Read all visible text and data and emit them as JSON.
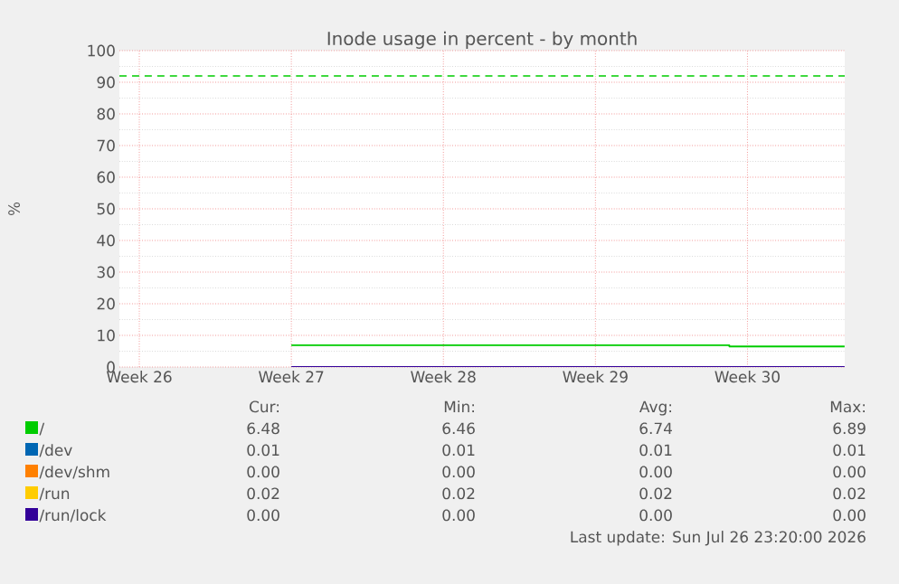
{
  "chart_data": {
    "type": "line",
    "title": "Inode usage in percent - by month",
    "ylabel": "%",
    "xlim": [
      "2026-06-23T14:00",
      "2026-07-26T23:30"
    ],
    "xticks": [
      {
        "value": "2026-06-24T12:00",
        "label": "Week 26"
      },
      {
        "value": "2026-07-01T12:00",
        "label": "Week 27"
      },
      {
        "value": "2026-07-08T12:00",
        "label": "Week 28"
      },
      {
        "value": "2026-07-15T12:00",
        "label": "Week 29"
      },
      {
        "value": "2026-07-22T12:00",
        "label": "Week 30"
      }
    ],
    "ylim": [
      0,
      100
    ],
    "yticks": [
      0,
      10,
      20,
      30,
      40,
      50,
      60,
      70,
      80,
      90,
      100
    ],
    "grid": true,
    "legend": "bottom",
    "marker": "none",
    "series": [
      {
        "name": "/",
        "color": "#00cc00",
        "type": "step",
        "x": [
          "2026-07-01T12:00",
          "2026-07-21T16:00",
          "2026-07-26T23:20"
        ],
        "values": [
          6.9,
          6.5,
          6.5
        ]
      },
      {
        "name": "/dev",
        "color": "#0066b3"
      },
      {
        "name": "/dev/shm",
        "color": "#ff8000"
      },
      {
        "name": "/run",
        "color": "#ffcc00"
      },
      {
        "name": "/run/lock",
        "color": "#330099",
        "x": [
          "2026-07-01T12:00",
          "2026-07-26T23:20"
        ],
        "values": [
          0,
          0
        ]
      }
    ],
    "ref_lines": [
      {
        "axis": "y",
        "value": 92,
        "color": "#00cc00",
        "line_style": "dashed"
      }
    ],
    "annotations": [
      "Cur:",
      "Min:",
      "Avg:",
      "Max:",
      "6.48",
      "6.46",
      "6.74",
      "6.89",
      "0.01",
      "0.01",
      "0.01",
      "0.01",
      "0.00",
      "0.00",
      "0.00",
      "0.00",
      "0.02",
      "0.02",
      "0.02",
      "0.02",
      "0.00",
      "0.00",
      "0.00",
      "0.00",
      "Last update: Sun Jul 26 23:20:00 2026"
    ]
  }
}
